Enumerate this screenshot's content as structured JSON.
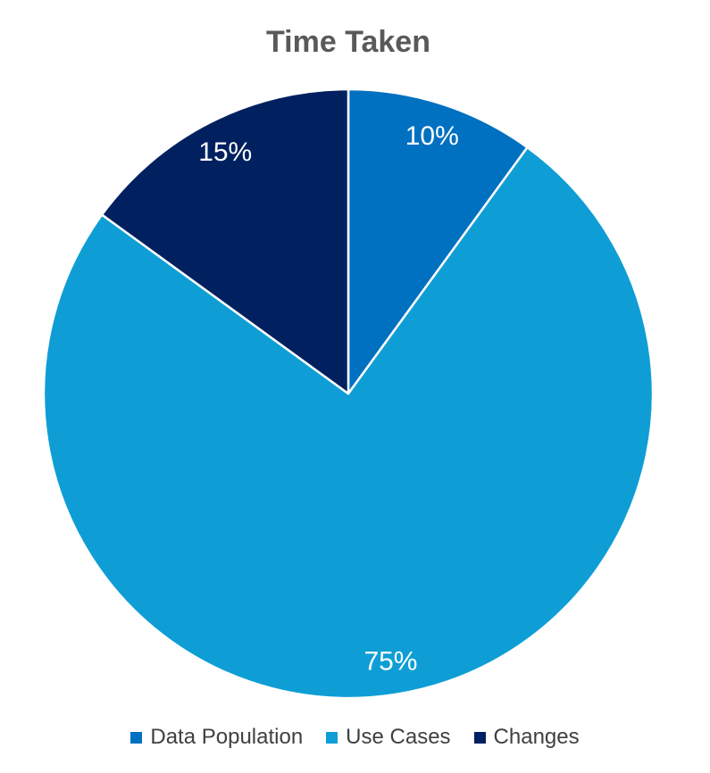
{
  "chart_data": {
    "type": "pie",
    "title": "Time Taken",
    "start_angle_deg": 0,
    "direction": "clockwise",
    "slices": [
      {
        "label": "Data Population",
        "value": 10,
        "display": "10%",
        "color": "#0070C0"
      },
      {
        "label": "Use Cases",
        "value": 75,
        "display": "75%",
        "color": "#0E9ED5"
      },
      {
        "label": "Changes",
        "value": 15,
        "display": "15%",
        "color": "#002060"
      }
    ],
    "legend_position": "bottom",
    "data_labels": "inside, percent, white"
  }
}
